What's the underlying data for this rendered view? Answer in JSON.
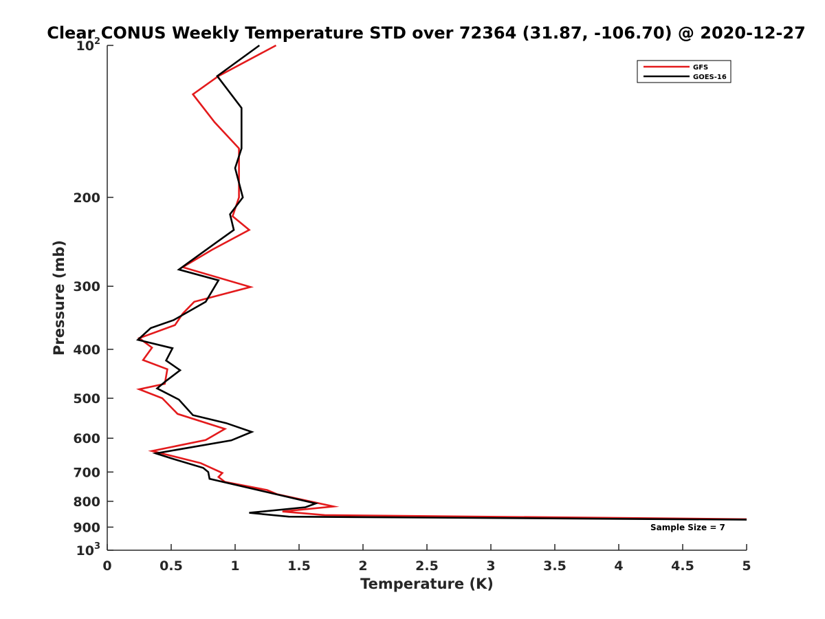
{
  "chart_data": {
    "type": "line",
    "title": "Clear CONUS Weekly Temperature STD over 72364 (31.87, -106.70) @ 2020-12-27",
    "xlabel": "Temperature (K)",
    "ylabel": "Pressure (mb)",
    "xlim": [
      0,
      5
    ],
    "ylim": [
      100,
      1000
    ],
    "yscale": "log",
    "yreversed": true,
    "grid": false,
    "legend_position": "top-right",
    "xticks": [
      "0",
      "0.5",
      "1",
      "1.5",
      "2",
      "2.5",
      "3",
      "3.5",
      "4",
      "4.5",
      "5"
    ],
    "yticks": [
      {
        "value": 100,
        "label": "10",
        "exp": "2"
      },
      {
        "value": 200,
        "label": "200",
        "exp": ""
      },
      {
        "value": 300,
        "label": "300",
        "exp": ""
      },
      {
        "value": 400,
        "label": "400",
        "exp": ""
      },
      {
        "value": 500,
        "label": "500",
        "exp": ""
      },
      {
        "value": 600,
        "label": "600",
        "exp": ""
      },
      {
        "value": 700,
        "label": "700",
        "exp": ""
      },
      {
        "value": 800,
        "label": "800",
        "exp": ""
      },
      {
        "value": 900,
        "label": "900",
        "exp": ""
      },
      {
        "value": 1000,
        "label": "10",
        "exp": "3"
      }
    ],
    "annotation": "Sample Size = 7",
    "series": [
      {
        "name": "GFS",
        "color": "#e31a1c",
        "points": [
          [
            1.32,
            100
          ],
          [
            0.87,
            115
          ],
          [
            0.67,
            125
          ],
          [
            0.84,
            142
          ],
          [
            1.03,
            160
          ],
          [
            1.03,
            200
          ],
          [
            0.98,
            218
          ],
          [
            1.11,
            232
          ],
          [
            0.82,
            254
          ],
          [
            0.59,
            275
          ],
          [
            1.12,
            301
          ],
          [
            0.68,
            322
          ],
          [
            0.59,
            340
          ],
          [
            0.53,
            358
          ],
          [
            0.25,
            380
          ],
          [
            0.35,
            397
          ],
          [
            0.28,
            420
          ],
          [
            0.47,
            438
          ],
          [
            0.45,
            468
          ],
          [
            0.25,
            480
          ],
          [
            0.43,
            500
          ],
          [
            0.55,
            537
          ],
          [
            0.92,
            575
          ],
          [
            0.77,
            605
          ],
          [
            0.35,
            636
          ],
          [
            0.73,
            672
          ],
          [
            0.9,
            703
          ],
          [
            0.87,
            716
          ],
          [
            0.92,
            732
          ],
          [
            1.25,
            760
          ],
          [
            1.33,
            775
          ],
          [
            1.77,
            819
          ],
          [
            1.37,
            838
          ],
          [
            1.7,
            852
          ],
          [
            5.0,
            868
          ]
        ]
      },
      {
        "name": "GOES-16",
        "color": "#000000",
        "points": [
          [
            1.19,
            100
          ],
          [
            0.86,
            115
          ],
          [
            1.05,
            133
          ],
          [
            1.05,
            160
          ],
          [
            1.0,
            175
          ],
          [
            1.06,
            200
          ],
          [
            0.96,
            216
          ],
          [
            0.99,
            232
          ],
          [
            0.85,
            246
          ],
          [
            0.56,
            278
          ],
          [
            0.87,
            292
          ],
          [
            0.77,
            322
          ],
          [
            0.52,
            350
          ],
          [
            0.34,
            363
          ],
          [
            0.24,
            383
          ],
          [
            0.51,
            398
          ],
          [
            0.46,
            421
          ],
          [
            0.57,
            440
          ],
          [
            0.46,
            462
          ],
          [
            0.39,
            478
          ],
          [
            0.56,
            503
          ],
          [
            0.67,
            540
          ],
          [
            0.93,
            560
          ],
          [
            1.13,
            583
          ],
          [
            0.97,
            606
          ],
          [
            0.38,
            643
          ],
          [
            0.52,
            660
          ],
          [
            0.75,
            687
          ],
          [
            0.79,
            700
          ],
          [
            0.8,
            722
          ],
          [
            1.13,
            755
          ],
          [
            1.63,
            808
          ],
          [
            1.55,
            822
          ],
          [
            1.11,
            843
          ],
          [
            1.42,
            858
          ],
          [
            5.0,
            870
          ]
        ]
      }
    ]
  }
}
